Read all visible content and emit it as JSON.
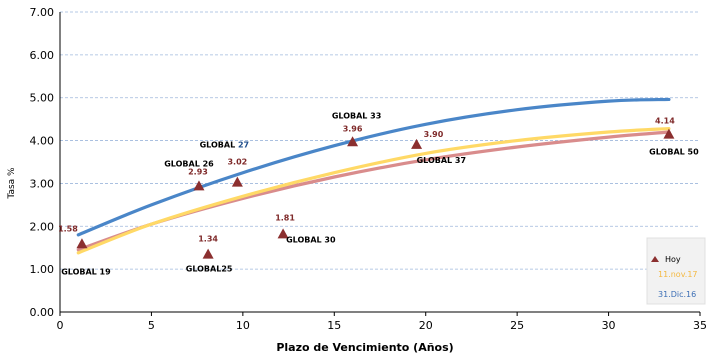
{
  "chart_data": {
    "type": "scatter",
    "title": "",
    "xlabel": "Plazo de Vencimiento  (Años)",
    "ylabel": "Tasa %",
    "xlim": [
      0,
      35
    ],
    "ylim": [
      0,
      7
    ],
    "x_ticks": [
      "0",
      "5",
      "10",
      "15",
      "20",
      "25",
      "30",
      "35"
    ],
    "y_ticks": [
      "0.00",
      "1.00",
      "2.00",
      "3.00",
      "4.00",
      "5.00",
      "6.00",
      "7.00"
    ],
    "grid": "horizontal dashed",
    "legend_position": "bottom-right",
    "points": [
      {
        "name": "GLOBAL 19",
        "x": 1.2,
        "y": 1.58,
        "value_label": "1.58"
      },
      {
        "name": "GLOBAL25",
        "x": 8.1,
        "y": 1.34,
        "value_label": "1.34"
      },
      {
        "name": "GLOBAL 26",
        "x": 7.6,
        "y": 2.93,
        "value_label": "2.93"
      },
      {
        "name": "GLOBAL 27",
        "x": 9.7,
        "y": 3.02,
        "value_label": "3.02"
      },
      {
        "name": "GLOBAL 30",
        "x": 12.2,
        "y": 1.81,
        "value_label": "1.81"
      },
      {
        "name": "GLOBAL 33",
        "x": 16.0,
        "y": 3.96,
        "value_label": "3.96"
      },
      {
        "name": "GLOBAL 37",
        "x": 19.5,
        "y": 3.9,
        "value_label": "3.90"
      },
      {
        "name": "GLOBAL 50",
        "x": 33.3,
        "y": 4.14,
        "value_label": "4.14"
      }
    ],
    "series": [
      {
        "name": "Hoy",
        "kind": "markers",
        "color": "#8b2f2f",
        "x": [
          1.2,
          8.1,
          7.6,
          9.7,
          12.2,
          16.0,
          19.5,
          33.3
        ],
        "values": [
          1.58,
          1.34,
          2.93,
          3.02,
          1.81,
          3.96,
          3.9,
          4.14
        ]
      },
      {
        "name": "",
        "kind": "curve",
        "color": "#d98c8c",
        "x": [
          1,
          5,
          10,
          15,
          20,
          25,
          30,
          33.3
        ],
        "values": [
          1.45,
          2.05,
          2.65,
          3.15,
          3.55,
          3.85,
          4.08,
          4.2
        ]
      },
      {
        "name": "11.nov.17",
        "kind": "curve",
        "color": "#ffd966",
        "x": [
          1,
          5,
          10,
          15,
          20,
          25,
          30,
          33.3
        ],
        "values": [
          1.38,
          2.05,
          2.7,
          3.25,
          3.7,
          4.0,
          4.2,
          4.28
        ]
      },
      {
        "name": "31.Dic.16",
        "kind": "curve",
        "color": "#4a86c8",
        "x": [
          1,
          5,
          10,
          15,
          20,
          25,
          30,
          33.3
        ],
        "values": [
          1.8,
          2.5,
          3.25,
          3.88,
          4.38,
          4.72,
          4.92,
          4.96
        ]
      }
    ]
  },
  "legend": {
    "items": [
      {
        "label": "Hoy",
        "color": "#000000"
      },
      {
        "label": "11.nov.17",
        "color": "#f4b942"
      },
      {
        "label": "31.Dic.16",
        "color": "#3d6fb5"
      }
    ]
  }
}
